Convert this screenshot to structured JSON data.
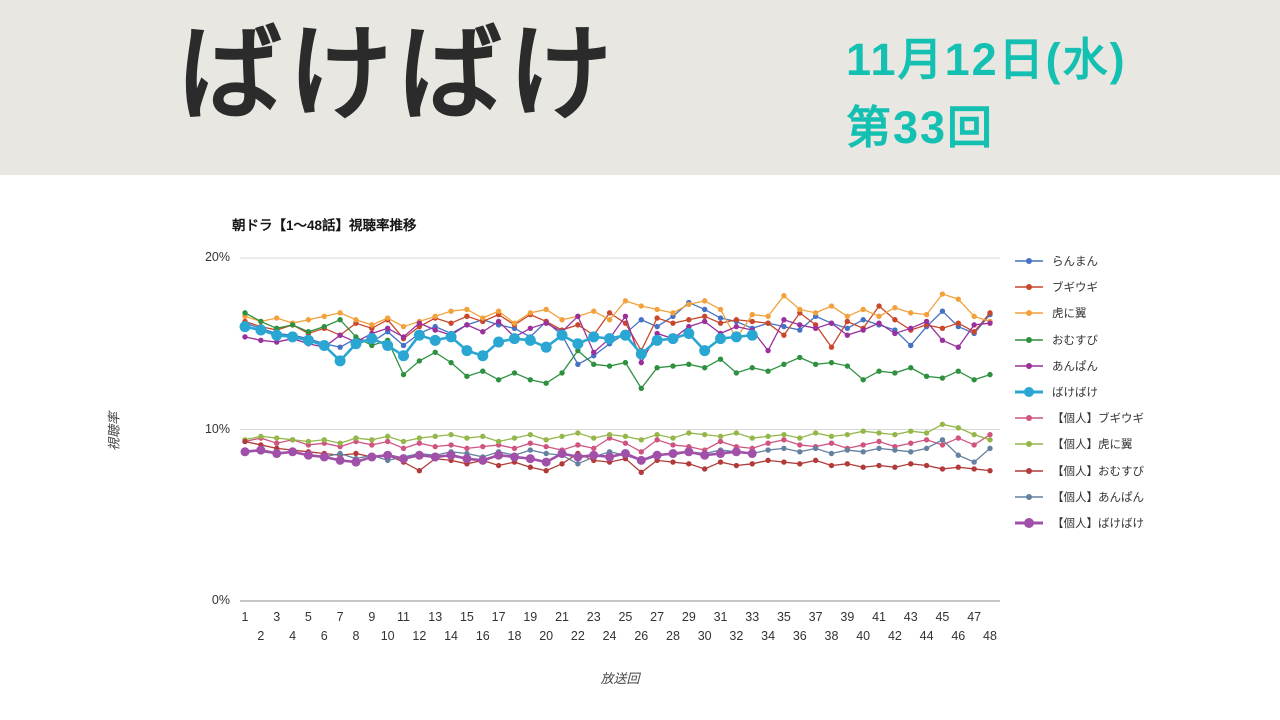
{
  "header": {
    "title": "ばけばけ",
    "date_line": "11月12日(水)",
    "episode_line": "第33回",
    "accent_color": "#13c0b1",
    "banner_bg": "#e9e7e1"
  },
  "chart_data": {
    "type": "line",
    "title": "朝ドラ【1～48話】視聴率推移",
    "xlabel": "放送回",
    "ylabel": "視聴率",
    "ylim": [
      0,
      20
    ],
    "yticks": [
      {
        "label": "0%",
        "value": 0
      },
      {
        "label": "10%",
        "value": 10
      },
      {
        "label": "20%",
        "value": 20
      }
    ],
    "x": [
      1,
      2,
      3,
      4,
      5,
      6,
      7,
      8,
      9,
      10,
      11,
      12,
      13,
      14,
      15,
      16,
      17,
      18,
      19,
      20,
      21,
      22,
      23,
      24,
      25,
      26,
      27,
      28,
      29,
      30,
      31,
      32,
      33,
      34,
      35,
      36,
      37,
      38,
      39,
      40,
      41,
      42,
      43,
      44,
      45,
      46,
      47,
      48
    ],
    "grid": "horizontal",
    "legend_position": "right",
    "series": [
      {
        "name": "らんまん",
        "color": "#4472c4",
        "thick": false,
        "values": [
          16.2,
          15.9,
          15.6,
          15.5,
          15.3,
          15.0,
          14.8,
          15.3,
          15.1,
          15.7,
          14.9,
          15.6,
          16.0,
          15.6,
          16.1,
          16.4,
          16.1,
          15.9,
          15.4,
          16.3,
          15.5,
          13.8,
          14.3,
          15.0,
          15.6,
          16.4,
          16.0,
          16.6,
          17.4,
          17.0,
          16.5,
          16.3,
          15.9,
          16.2,
          16.0,
          15.8,
          16.6,
          16.2,
          15.9,
          16.4,
          16.1,
          15.8,
          14.9,
          16.0,
          16.9,
          16.0,
          15.6,
          16.7
        ]
      },
      {
        "name": "ブギウギ",
        "color": "#c9472b",
        "thick": false,
        "values": [
          16.3,
          16.0,
          15.8,
          16.1,
          15.6,
          15.9,
          15.5,
          16.2,
          15.9,
          16.4,
          15.3,
          16.0,
          16.5,
          16.2,
          16.6,
          16.3,
          16.7,
          16.1,
          16.7,
          16.3,
          15.8,
          16.1,
          15.5,
          16.8,
          16.2,
          14.6,
          16.5,
          16.2,
          16.4,
          16.6,
          16.2,
          16.4,
          16.3,
          16.2,
          15.5,
          16.8,
          16.1,
          14.8,
          16.3,
          15.9,
          17.2,
          16.4,
          15.8,
          16.1,
          15.9,
          16.2,
          15.7,
          16.8
        ]
      },
      {
        "name": "虎に翼",
        "color": "#f2a13b",
        "thick": false,
        "values": [
          16.6,
          16.3,
          16.5,
          16.2,
          16.4,
          16.6,
          16.8,
          16.4,
          16.1,
          16.5,
          16.0,
          16.3,
          16.6,
          16.9,
          17.0,
          16.5,
          16.9,
          16.2,
          16.8,
          17.0,
          16.4,
          16.6,
          16.9,
          16.4,
          17.5,
          17.2,
          17.0,
          16.8,
          17.3,
          17.5,
          17.0,
          15.3,
          16.7,
          16.6,
          17.8,
          17.0,
          16.8,
          17.2,
          16.6,
          17.0,
          16.6,
          17.1,
          16.8,
          16.7,
          17.9,
          17.6,
          16.6,
          16.3
        ]
      },
      {
        "name": "おむすび",
        "color": "#2e9140",
        "thick": false,
        "values": [
          16.8,
          16.3,
          15.9,
          16.1,
          15.7,
          16.0,
          16.4,
          15.4,
          14.9,
          15.2,
          13.2,
          14.0,
          14.5,
          13.9,
          13.1,
          13.4,
          12.9,
          13.3,
          12.9,
          12.7,
          13.3,
          14.6,
          13.8,
          13.7,
          13.9,
          12.4,
          13.6,
          13.7,
          13.8,
          13.6,
          14.1,
          13.3,
          13.6,
          13.4,
          13.8,
          14.2,
          13.8,
          13.9,
          13.7,
          12.9,
          13.4,
          13.3,
          13.6,
          13.1,
          13.0,
          13.4,
          12.9,
          13.2
        ]
      },
      {
        "name": "あんぱん",
        "color": "#99309c",
        "thick": false,
        "values": [
          15.4,
          15.2,
          15.1,
          15.3,
          15.0,
          14.8,
          15.5,
          15.1,
          15.6,
          15.9,
          15.4,
          16.2,
          15.8,
          15.5,
          16.1,
          15.7,
          16.3,
          15.4,
          15.9,
          16.2,
          15.7,
          16.6,
          14.5,
          15.3,
          16.6,
          13.9,
          15.6,
          15.3,
          16.0,
          16.3,
          15.6,
          16.0,
          15.8,
          14.6,
          16.4,
          16.1,
          15.9,
          16.2,
          15.5,
          15.8,
          16.2,
          15.6,
          15.9,
          16.3,
          15.2,
          14.8,
          16.1,
          16.2
        ]
      },
      {
        "name": "ばけばけ",
        "color": "#2aa6d2",
        "thick": true,
        "values": [
          16.0,
          15.8,
          15.5,
          15.4,
          15.2,
          14.9,
          14.0,
          15.0,
          15.3,
          14.9,
          14.3,
          15.5,
          15.2,
          15.4,
          14.6,
          14.3,
          15.1,
          15.3,
          15.2,
          14.8,
          15.5,
          15.0,
          15.4,
          15.3,
          15.5,
          14.4,
          15.2,
          15.3,
          15.6,
          14.6,
          15.3,
          15.4,
          15.5
        ]
      },
      {
        "name": "【個人】ブギウギ",
        "color": "#cf5580",
        "thick": false,
        "values": [
          9.3,
          9.5,
          9.2,
          9.4,
          9.1,
          9.2,
          9.0,
          9.3,
          9.1,
          9.3,
          8.9,
          9.2,
          9.0,
          9.1,
          8.9,
          9.0,
          9.1,
          8.9,
          9.2,
          9.0,
          8.8,
          9.1,
          8.9,
          9.5,
          9.2,
          8.7,
          9.4,
          9.1,
          9.0,
          8.8,
          9.3,
          9.0,
          8.9,
          9.2,
          9.4,
          9.1,
          9.0,
          9.2,
          8.9,
          9.1,
          9.3,
          9.0,
          9.2,
          9.4,
          9.1,
          9.5,
          9.1,
          9.7
        ]
      },
      {
        "name": "【個人】虎に翼",
        "color": "#94b64a",
        "thick": false,
        "values": [
          9.4,
          9.6,
          9.5,
          9.4,
          9.3,
          9.4,
          9.2,
          9.5,
          9.4,
          9.6,
          9.3,
          9.5,
          9.6,
          9.7,
          9.5,
          9.6,
          9.3,
          9.5,
          9.7,
          9.4,
          9.6,
          9.8,
          9.5,
          9.7,
          9.6,
          9.4,
          9.7,
          9.5,
          9.8,
          9.7,
          9.6,
          9.8,
          9.5,
          9.6,
          9.7,
          9.5,
          9.8,
          9.6,
          9.7,
          9.9,
          9.8,
          9.7,
          9.9,
          9.8,
          10.3,
          10.1,
          9.7,
          9.4
        ]
      },
      {
        "name": "【個人】おむすび",
        "color": "#b23a3a",
        "thick": false,
        "values": [
          9.3,
          9.1,
          8.9,
          8.8,
          8.7,
          8.6,
          8.5,
          8.6,
          8.4,
          8.5,
          8.1,
          7.6,
          8.3,
          8.2,
          8.0,
          8.2,
          7.9,
          8.1,
          7.8,
          7.6,
          8.0,
          8.6,
          8.2,
          8.1,
          8.3,
          7.5,
          8.2,
          8.1,
          8.0,
          7.7,
          8.1,
          7.9,
          8.0,
          8.2,
          8.1,
          8.0,
          8.2,
          7.9,
          8.0,
          7.8,
          7.9,
          7.8,
          8.0,
          7.9,
          7.7,
          7.8,
          7.7,
          7.6
        ]
      },
      {
        "name": "【個人】あんぱん",
        "color": "#64819f",
        "thick": false,
        "values": [
          8.8,
          8.7,
          8.6,
          8.7,
          8.5,
          8.4,
          8.6,
          8.3,
          8.5,
          8.2,
          8.4,
          8.6,
          8.5,
          8.7,
          8.6,
          8.4,
          8.7,
          8.5,
          8.8,
          8.6,
          8.5,
          8.0,
          8.4,
          8.7,
          8.5,
          8.2,
          8.6,
          8.5,
          8.7,
          8.6,
          8.8,
          8.7,
          8.6,
          8.8,
          8.9,
          8.7,
          8.9,
          8.6,
          8.8,
          8.7,
          8.9,
          8.8,
          8.7,
          8.9,
          9.4,
          8.5,
          8.1,
          8.9
        ]
      },
      {
        "name": "【個人】ばけばけ",
        "color": "#a050a8",
        "thick": true,
        "values": [
          8.7,
          8.8,
          8.6,
          8.7,
          8.5,
          8.4,
          8.2,
          8.1,
          8.4,
          8.5,
          8.3,
          8.5,
          8.4,
          8.5,
          8.3,
          8.2,
          8.5,
          8.4,
          8.3,
          8.1,
          8.6,
          8.4,
          8.5,
          8.4,
          8.6,
          8.2,
          8.5,
          8.6,
          8.7,
          8.5,
          8.6,
          8.7,
          8.6
        ]
      }
    ]
  }
}
